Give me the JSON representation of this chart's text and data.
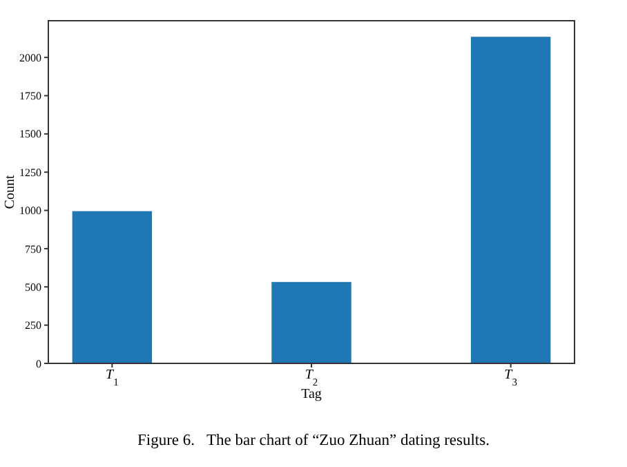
{
  "chart_data": {
    "type": "bar",
    "xlabel": "Tag",
    "ylabel": "Count",
    "categories": [
      "T$_{1}$",
      "T$_{2}$",
      "T$_{3}$"
    ],
    "values": [
      995,
      532,
      2135
    ],
    "color": "#1f77b4",
    "ylim": [
      0,
      2240
    ],
    "yticks": [
      0,
      250,
      500,
      750,
      1000,
      1250,
      1500,
      1750,
      2000
    ],
    "grid": false,
    "annotations": [
      "Figure 6.   The bar chart of “Zuo Zhuan” dating results."
    ]
  }
}
